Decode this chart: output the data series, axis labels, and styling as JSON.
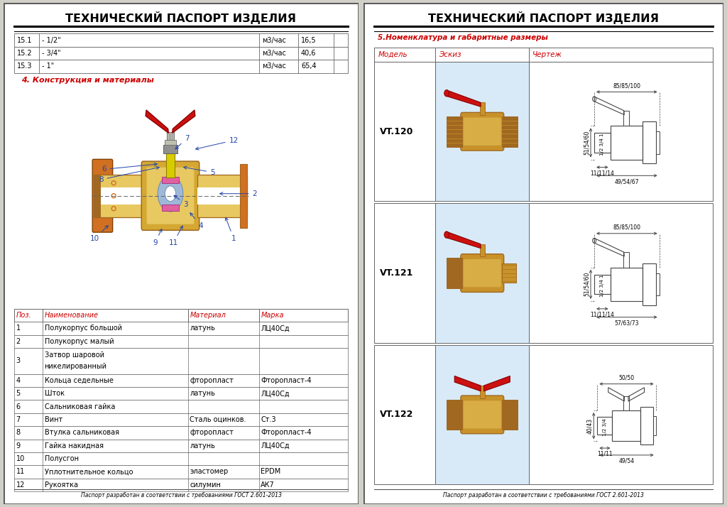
{
  "title": "ТЕХНИЧЕСКИЙ ПАСПОРТ ИЗДЕЛИЯ",
  "left_panel": {
    "table1_rows": [
      [
        "15.1",
        "- 1/2\"",
        "м3/час",
        "16,5"
      ],
      [
        "15.2",
        "- 3/4\"",
        "м3/час",
        "40,6"
      ],
      [
        "15.3",
        "- 1\"",
        "м3/час",
        "65,4"
      ]
    ],
    "section4_title": "4. Конструкция и материалы",
    "parts_headers": [
      "Поз.",
      "Наименование",
      "Материал",
      "Марка"
    ],
    "parts_rows": [
      [
        "1",
        "Полукорпус большой",
        "латунь",
        "ЛЦ40Сд"
      ],
      [
        "2",
        "Полукорпус малый",
        "",
        ""
      ],
      [
        "3",
        "Затвор шаровой\nникелированный",
        "",
        ""
      ],
      [
        "4",
        "Кольца седельные",
        "фторопласт",
        "Фторопласт-4"
      ],
      [
        "5",
        "Шток",
        "латунь",
        "ЛЦ40Сд"
      ],
      [
        "6",
        "Сальниковая гайка",
        "",
        ""
      ],
      [
        "7",
        "Винт",
        "Сталь оцинков.",
        "Ст.3"
      ],
      [
        "8",
        "Втулка сальниковая",
        "фторопласт",
        "Фторопласт-4"
      ],
      [
        "9",
        "Гайка накидная",
        "латунь",
        "ЛЦ40Сд"
      ],
      [
        "10",
        "Полусгон",
        "",
        ""
      ],
      [
        "11",
        "Уплотнительное кольцо",
        "эластомер",
        "EPDM"
      ],
      [
        "12",
        "Рукоятка",
        "силумин",
        "АК7"
      ]
    ],
    "footer": "Паспорт разработан в соответствии с требованиями ГОСТ 2.601-2013"
  },
  "right_panel": {
    "section5_title": "5.Номенклатура и габаритные размеры",
    "col_headers": [
      "Модель",
      "Эскиз",
      "Чертеж"
    ],
    "models": [
      "VT.120",
      "VT.121",
      "VT.122"
    ],
    "dims": [
      {
        "total_w": "85/85/100",
        "height": "51/54/60",
        "dn": "1/2 3/4 1",
        "thread_l": "11/11/14",
        "end_w": "49/54/67"
      },
      {
        "total_w": "85/85/100",
        "height": "51/54/60",
        "dn": "1/2 3/4 1",
        "thread_l": "11/11/14",
        "end_w": "57/63/73"
      },
      {
        "total_w": "50/50",
        "height": "40/43",
        "dn": "1/2 3/4",
        "thread_l": "11/11",
        "end_w": "49/54"
      }
    ],
    "footer": "Паспорт разработан в соответствии с требованиями ГОСТ 2.601-2013"
  },
  "colors": {
    "red_text": "#cc0000",
    "brass_main": "#c8922a",
    "brass_body": "#d4a832",
    "brass_light": "#e8c860",
    "brass_dark": "#a06820",
    "orange_pipe": "#d07020",
    "red_handle": "#cc1010",
    "yellow_stem": "#d8cc00",
    "blue_ball": "#a0b8d8",
    "pink_seal": "#e060a0",
    "gray_nut": "#909090",
    "blue_ann": "#2244aa",
    "dim_line": "#444444",
    "sketch_bg": "#d8eaf8"
  }
}
